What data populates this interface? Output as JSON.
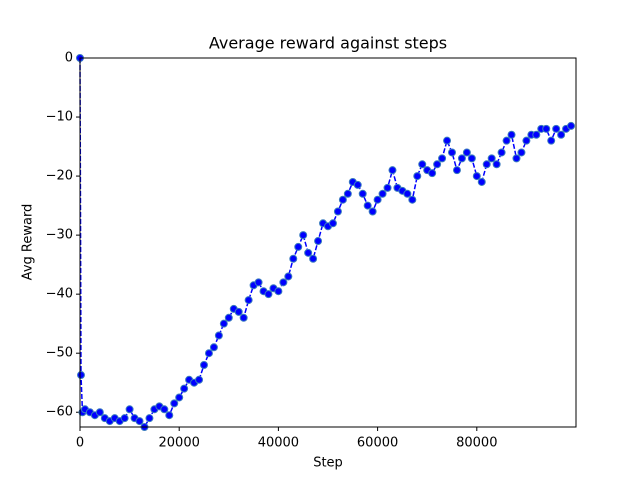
{
  "chart_data": {
    "type": "line",
    "title": "Average reward against steps",
    "x_label": "Step",
    "y_label": "Avg Reward",
    "xlim": [
      0,
      100000
    ],
    "ylim": [
      -62.5,
      0
    ],
    "grid": false,
    "xticks": [
      0,
      20000,
      40000,
      60000,
      80000
    ],
    "yticks": [
      0,
      {
        "value": -10,
        "label": "−10"
      },
      {
        "value": -20,
        "label": "−20"
      },
      {
        "value": -30,
        "label": "−30"
      },
      {
        "value": -40,
        "label": "−40"
      },
      {
        "value": -50,
        "label": "−50"
      },
      {
        "value": -60,
        "label": "−60"
      }
    ],
    "x": [
      0,
      200,
      500,
      1000,
      2000,
      3000,
      4000,
      5000,
      6000,
      7000,
      8000,
      9000,
      10000,
      11000,
      12000,
      13000,
      14000,
      15000,
      16000,
      17000,
      18000,
      19000,
      20000,
      21000,
      22000,
      23000,
      24000,
      25000,
      26000,
      27000,
      28000,
      29000,
      30000,
      31000,
      32000,
      33000,
      34000,
      35000,
      36000,
      37000,
      38000,
      39000,
      40000,
      41000,
      42000,
      43000,
      44000,
      45000,
      46000,
      47000,
      48000,
      49000,
      50000,
      51000,
      52000,
      53000,
      54000,
      55000,
      56000,
      57000,
      58000,
      59000,
      60000,
      61000,
      62000,
      63000,
      64000,
      65000,
      66000,
      67000,
      68000,
      69000,
      70000,
      71000,
      72000,
      73000,
      74000,
      75000,
      76000,
      77000,
      78000,
      79000,
      80000,
      81000,
      82000,
      83000,
      84000,
      85000,
      86000,
      87000,
      88000,
      89000,
      90000,
      91000,
      92000,
      93000,
      94000,
      95000,
      96000,
      97000,
      98000,
      99000
    ],
    "series": [
      {
        "color": "#0000ff",
        "values": [
          0,
          -53.7,
          -60,
          -59.5,
          -60,
          -60.5,
          -60,
          -61,
          -61.5,
          -61,
          -61.5,
          -61,
          -59.5,
          -61,
          -61.5,
          -62.5,
          -61,
          -59.5,
          -59,
          -59.5,
          -60.5,
          -58.5,
          -57.5,
          -56,
          -54.5,
          -55,
          -54.5,
          -52,
          -50,
          -49,
          -47,
          -45,
          -44,
          -42.5,
          -43,
          -44,
          -41,
          -38.5,
          -38,
          -39.5,
          -40,
          -39,
          -39.5,
          -38,
          -37,
          -34,
          -32,
          -30,
          -33,
          -34,
          -31,
          -28,
          -28.5,
          -28,
          -26,
          -24,
          -23,
          -21,
          -21.5,
          -23,
          -25,
          -26,
          -24,
          -23,
          -22,
          -19,
          -22,
          -22.5,
          -23,
          -24,
          -20,
          -18,
          -19,
          -19.5,
          -18,
          -17,
          -14,
          -16,
          -19,
          -17,
          -16,
          -17,
          -20,
          -21,
          -18,
          -17,
          -18,
          -16,
          -14,
          -13,
          -17,
          -16,
          -14,
          -13,
          -13,
          -12,
          -12,
          -14,
          -12,
          -13,
          -12,
          -11.5
        ]
      }
    ]
  }
}
